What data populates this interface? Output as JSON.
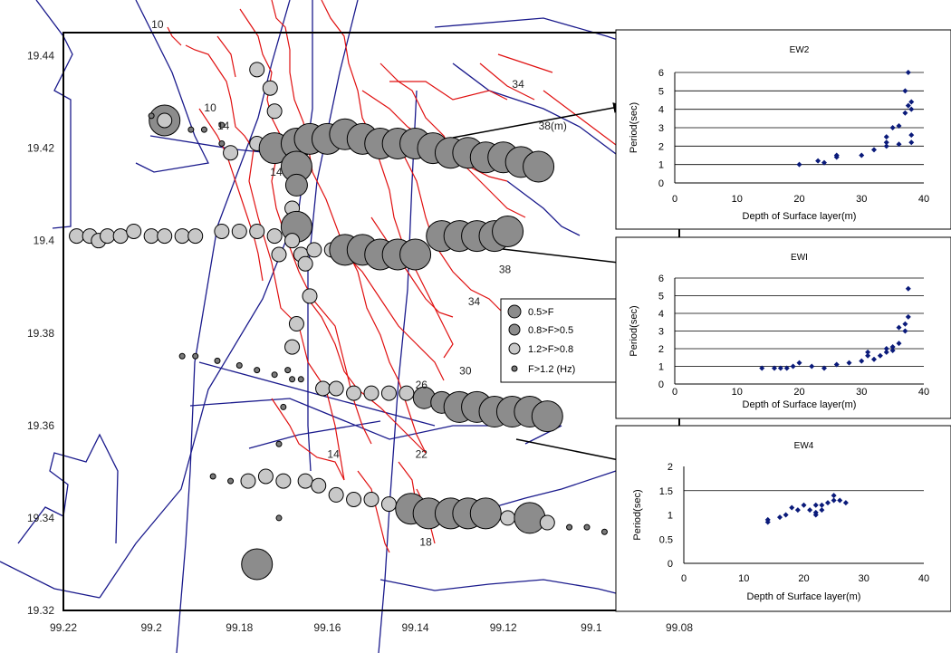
{
  "chart_data": [
    {
      "type": "scatter",
      "x_ticks": [
        "99.22",
        "99.2",
        "99.18",
        "99.16",
        "99.14",
        "99.12",
        "99.1",
        "99.08"
      ],
      "y_ticks": [
        "19.44",
        "19.42",
        "19.4",
        "19.38",
        "19.36",
        "19.34",
        "19.32"
      ],
      "xlim": [
        99.08,
        99.22
      ],
      "ylim": [
        19.32,
        19.45
      ],
      "contour_labels": [
        {
          "text": "10",
          "x": 99.2,
          "y": 19.446
        },
        {
          "text": "10",
          "x": 99.188,
          "y": 19.428
        },
        {
          "text": "14",
          "x": 99.185,
          "y": 19.424
        },
        {
          "text": "14",
          "x": 99.173,
          "y": 19.414
        },
        {
          "text": "34",
          "x": 99.118,
          "y": 19.433
        },
        {
          "text": "38(m)",
          "x": 99.112,
          "y": 19.424
        },
        {
          "text": "38",
          "x": 99.121,
          "y": 19.393
        },
        {
          "text": "34",
          "x": 99.128,
          "y": 19.386
        },
        {
          "text": "30",
          "x": 99.13,
          "y": 19.371
        },
        {
          "text": "26",
          "x": 99.14,
          "y": 19.368
        },
        {
          "text": "22",
          "x": 99.14,
          "y": 19.353
        },
        {
          "text": "14",
          "x": 99.16,
          "y": 19.353
        },
        {
          "text": "18",
          "x": 99.139,
          "y": 19.334
        }
      ],
      "legend": {
        "placement": "right",
        "entries": [
          {
            "label": "0.5>F",
            "color": "#8c8c8c",
            "size": "large"
          },
          {
            "label": "0.8>F>0.5",
            "color": "#8c8c8c",
            "size": "medium"
          },
          {
            "label": "1.2>F>0.8",
            "color": "#c8c8c8",
            "size": "medium"
          },
          {
            "label": "F>1.2  (Hz)",
            "color": "#7a7a7a",
            "size": "small"
          }
        ]
      },
      "points": [
        {
          "x": 99.197,
          "y": 19.426,
          "c": 1
        },
        {
          "x": 99.197,
          "y": 19.426,
          "c": 3
        },
        {
          "x": 99.2,
          "y": 19.427,
          "c": 4
        },
        {
          "x": 99.191,
          "y": 19.424,
          "c": 4
        },
        {
          "x": 99.188,
          "y": 19.424,
          "c": 4
        },
        {
          "x": 99.184,
          "y": 19.421,
          "c": 4
        },
        {
          "x": 99.184,
          "y": 19.425,
          "c": 4
        },
        {
          "x": 99.176,
          "y": 19.437,
          "c": 3
        },
        {
          "x": 99.173,
          "y": 19.433,
          "c": 3
        },
        {
          "x": 99.172,
          "y": 19.428,
          "c": 3
        },
        {
          "x": 99.182,
          "y": 19.419,
          "c": 3
        },
        {
          "x": 99.176,
          "y": 19.421,
          "c": 3
        },
        {
          "x": 99.172,
          "y": 19.42,
          "c": 1
        },
        {
          "x": 99.167,
          "y": 19.421,
          "c": 1
        },
        {
          "x": 99.164,
          "y": 19.422,
          "c": 1
        },
        {
          "x": 99.16,
          "y": 19.422,
          "c": 1
        },
        {
          "x": 99.156,
          "y": 19.423,
          "c": 1
        },
        {
          "x": 99.152,
          "y": 19.422,
          "c": 1
        },
        {
          "x": 99.148,
          "y": 19.421,
          "c": 1
        },
        {
          "x": 99.144,
          "y": 19.421,
          "c": 1
        },
        {
          "x": 99.14,
          "y": 19.421,
          "c": 1
        },
        {
          "x": 99.136,
          "y": 19.42,
          "c": 1
        },
        {
          "x": 99.132,
          "y": 19.419,
          "c": 1
        },
        {
          "x": 99.128,
          "y": 19.419,
          "c": 1
        },
        {
          "x": 99.124,
          "y": 19.418,
          "c": 1
        },
        {
          "x": 99.12,
          "y": 19.418,
          "c": 1
        },
        {
          "x": 99.116,
          "y": 19.417,
          "c": 1
        },
        {
          "x": 99.112,
          "y": 19.416,
          "c": 1
        },
        {
          "x": 99.167,
          "y": 19.416,
          "c": 1
        },
        {
          "x": 99.167,
          "y": 19.412,
          "c": 2
        },
        {
          "x": 99.168,
          "y": 19.407,
          "c": 3
        },
        {
          "x": 99.167,
          "y": 19.403,
          "c": 1
        },
        {
          "x": 99.166,
          "y": 19.397,
          "c": 3
        },
        {
          "x": 99.165,
          "y": 19.395,
          "c": 3
        },
        {
          "x": 99.164,
          "y": 19.388,
          "c": 3
        },
        {
          "x": 99.167,
          "y": 19.382,
          "c": 3
        },
        {
          "x": 99.168,
          "y": 19.377,
          "c": 3
        },
        {
          "x": 99.169,
          "y": 19.372,
          "c": 4
        },
        {
          "x": 99.166,
          "y": 19.37,
          "c": 4
        },
        {
          "x": 99.217,
          "y": 19.401,
          "c": 3
        },
        {
          "x": 99.214,
          "y": 19.401,
          "c": 3
        },
        {
          "x": 99.212,
          "y": 19.4,
          "c": 3
        },
        {
          "x": 99.21,
          "y": 19.401,
          "c": 3
        },
        {
          "x": 99.207,
          "y": 19.401,
          "c": 3
        },
        {
          "x": 99.204,
          "y": 19.402,
          "c": 3
        },
        {
          "x": 99.2,
          "y": 19.401,
          "c": 3
        },
        {
          "x": 99.197,
          "y": 19.401,
          "c": 3
        },
        {
          "x": 99.193,
          "y": 19.401,
          "c": 3
        },
        {
          "x": 99.19,
          "y": 19.401,
          "c": 3
        },
        {
          "x": 99.184,
          "y": 19.402,
          "c": 3
        },
        {
          "x": 99.18,
          "y": 19.402,
          "c": 3
        },
        {
          "x": 99.176,
          "y": 19.402,
          "c": 3
        },
        {
          "x": 99.172,
          "y": 19.401,
          "c": 3
        },
        {
          "x": 99.168,
          "y": 19.4,
          "c": 3
        },
        {
          "x": 99.171,
          "y": 19.397,
          "c": 3
        },
        {
          "x": 99.163,
          "y": 19.398,
          "c": 3
        },
        {
          "x": 99.159,
          "y": 19.398,
          "c": 3
        },
        {
          "x": 99.156,
          "y": 19.398,
          "c": 1
        },
        {
          "x": 99.152,
          "y": 19.398,
          "c": 1
        },
        {
          "x": 99.148,
          "y": 19.397,
          "c": 1
        },
        {
          "x": 99.144,
          "y": 19.397,
          "c": 1
        },
        {
          "x": 99.14,
          "y": 19.397,
          "c": 1
        },
        {
          "x": 99.134,
          "y": 19.401,
          "c": 1
        },
        {
          "x": 99.13,
          "y": 19.401,
          "c": 1
        },
        {
          "x": 99.126,
          "y": 19.401,
          "c": 1
        },
        {
          "x": 99.122,
          "y": 19.401,
          "c": 1
        },
        {
          "x": 99.119,
          "y": 19.402,
          "c": 1
        },
        {
          "x": 99.193,
          "y": 19.375,
          "c": 4
        },
        {
          "x": 99.19,
          "y": 19.375,
          "c": 4
        },
        {
          "x": 99.185,
          "y": 19.374,
          "c": 4
        },
        {
          "x": 99.18,
          "y": 19.373,
          "c": 4
        },
        {
          "x": 99.176,
          "y": 19.372,
          "c": 4
        },
        {
          "x": 99.172,
          "y": 19.371,
          "c": 4
        },
        {
          "x": 99.168,
          "y": 19.37,
          "c": 4
        },
        {
          "x": 99.161,
          "y": 19.368,
          "c": 3
        },
        {
          "x": 99.158,
          "y": 19.368,
          "c": 3
        },
        {
          "x": 99.154,
          "y": 19.367,
          "c": 3
        },
        {
          "x": 99.15,
          "y": 19.367,
          "c": 3
        },
        {
          "x": 99.146,
          "y": 19.367,
          "c": 3
        },
        {
          "x": 99.142,
          "y": 19.367,
          "c": 3
        },
        {
          "x": 99.138,
          "y": 19.366,
          "c": 2
        },
        {
          "x": 99.134,
          "y": 19.365,
          "c": 2
        },
        {
          "x": 99.13,
          "y": 19.364,
          "c": 1
        },
        {
          "x": 99.126,
          "y": 19.364,
          "c": 1
        },
        {
          "x": 99.122,
          "y": 19.363,
          "c": 1
        },
        {
          "x": 99.118,
          "y": 19.363,
          "c": 1
        },
        {
          "x": 99.114,
          "y": 19.363,
          "c": 1
        },
        {
          "x": 99.11,
          "y": 19.362,
          "c": 1
        },
        {
          "x": 99.17,
          "y": 19.364,
          "c": 4
        },
        {
          "x": 99.171,
          "y": 19.356,
          "c": 4
        },
        {
          "x": 99.186,
          "y": 19.349,
          "c": 4
        },
        {
          "x": 99.182,
          "y": 19.348,
          "c": 4
        },
        {
          "x": 99.178,
          "y": 19.348,
          "c": 3
        },
        {
          "x": 99.174,
          "y": 19.349,
          "c": 3
        },
        {
          "x": 99.17,
          "y": 19.348,
          "c": 3
        },
        {
          "x": 99.165,
          "y": 19.348,
          "c": 3
        },
        {
          "x": 99.162,
          "y": 19.347,
          "c": 3
        },
        {
          "x": 99.158,
          "y": 19.345,
          "c": 3
        },
        {
          "x": 99.154,
          "y": 19.344,
          "c": 3
        },
        {
          "x": 99.15,
          "y": 19.344,
          "c": 3
        },
        {
          "x": 99.146,
          "y": 19.343,
          "c": 3
        },
        {
          "x": 99.141,
          "y": 19.342,
          "c": 1
        },
        {
          "x": 99.137,
          "y": 19.341,
          "c": 1
        },
        {
          "x": 99.132,
          "y": 19.341,
          "c": 1
        },
        {
          "x": 99.128,
          "y": 19.341,
          "c": 1
        },
        {
          "x": 99.124,
          "y": 19.341,
          "c": 1
        },
        {
          "x": 99.119,
          "y": 19.34,
          "c": 3
        },
        {
          "x": 99.114,
          "y": 19.34,
          "c": 1
        },
        {
          "x": 99.11,
          "y": 19.339,
          "c": 3
        },
        {
          "x": 99.105,
          "y": 19.338,
          "c": 4
        },
        {
          "x": 99.101,
          "y": 19.338,
          "c": 4
        },
        {
          "x": 99.097,
          "y": 19.337,
          "c": 4
        },
        {
          "x": 99.171,
          "y": 19.34,
          "c": 4
        },
        {
          "x": 99.176,
          "y": 19.33,
          "c": 1
        }
      ]
    },
    {
      "type": "scatter",
      "title": "EW2",
      "xlabel": "Depth of Surface layer(m)",
      "ylabel": "Period(sec)",
      "x_ticks": [
        "0",
        "10",
        "20",
        "30",
        "40"
      ],
      "y_ticks": [
        "0",
        "1",
        "2",
        "3",
        "4",
        "5",
        "6"
      ],
      "xlim": [
        0,
        40
      ],
      "ylim": [
        0,
        6
      ],
      "gridlines_y": [
        1,
        2,
        3,
        4,
        5,
        6
      ],
      "points": [
        {
          "x": 20,
          "y": 1.0
        },
        {
          "x": 23,
          "y": 1.2
        },
        {
          "x": 24,
          "y": 1.1
        },
        {
          "x": 26,
          "y": 1.4
        },
        {
          "x": 26,
          "y": 1.5
        },
        {
          "x": 30,
          "y": 1.5
        },
        {
          "x": 32,
          "y": 1.8
        },
        {
          "x": 34,
          "y": 2.0
        },
        {
          "x": 34,
          "y": 2.2
        },
        {
          "x": 34,
          "y": 2.5
        },
        {
          "x": 35,
          "y": 3.0
        },
        {
          "x": 36,
          "y": 3.1
        },
        {
          "x": 36,
          "y": 2.1
        },
        {
          "x": 37,
          "y": 3.8
        },
        {
          "x": 37,
          "y": 5.0
        },
        {
          "x": 37.5,
          "y": 4.2
        },
        {
          "x": 38,
          "y": 4.4
        },
        {
          "x": 38,
          "y": 4.0
        },
        {
          "x": 38,
          "y": 2.2
        },
        {
          "x": 38,
          "y": 2.6
        },
        {
          "x": 37.5,
          "y": 6.0
        }
      ]
    },
    {
      "type": "scatter",
      "title": "EWI",
      "xlabel": "Depth of Surface layer(m)",
      "ylabel": "Period(sec)",
      "x_ticks": [
        "0",
        "10",
        "20",
        "30",
        "40"
      ],
      "y_ticks": [
        "0",
        "1",
        "2",
        "3",
        "4",
        "5",
        "6"
      ],
      "xlim": [
        0,
        40
      ],
      "ylim": [
        0,
        6
      ],
      "gridlines_y": [
        1,
        2,
        3,
        4,
        5,
        6
      ],
      "points": [
        {
          "x": 14,
          "y": 0.9
        },
        {
          "x": 16,
          "y": 0.9
        },
        {
          "x": 17,
          "y": 0.9
        },
        {
          "x": 18,
          "y": 0.9
        },
        {
          "x": 19,
          "y": 1.0
        },
        {
          "x": 20,
          "y": 1.2
        },
        {
          "x": 22,
          "y": 1.0
        },
        {
          "x": 24,
          "y": 0.9
        },
        {
          "x": 26,
          "y": 1.1
        },
        {
          "x": 28,
          "y": 1.2
        },
        {
          "x": 30,
          "y": 1.3
        },
        {
          "x": 31,
          "y": 1.6
        },
        {
          "x": 31,
          "y": 1.8
        },
        {
          "x": 32,
          "y": 1.4
        },
        {
          "x": 33,
          "y": 1.6
        },
        {
          "x": 34,
          "y": 1.8
        },
        {
          "x": 34,
          "y": 2.0
        },
        {
          "x": 35,
          "y": 1.9
        },
        {
          "x": 35,
          "y": 2.1
        },
        {
          "x": 36,
          "y": 2.3
        },
        {
          "x": 36,
          "y": 3.2
        },
        {
          "x": 37,
          "y": 3.4
        },
        {
          "x": 37,
          "y": 3.0
        },
        {
          "x": 37.5,
          "y": 3.8
        },
        {
          "x": 37.5,
          "y": 5.4
        }
      ]
    },
    {
      "type": "scatter",
      "title": "EW4",
      "xlabel": "Depth of Surface layer(m)",
      "ylabel": "Period(sec)",
      "x_ticks": [
        "0",
        "10",
        "20",
        "30",
        "40"
      ],
      "y_ticks": [
        "0",
        "0.5",
        "1",
        "1.5",
        "2"
      ],
      "xlim": [
        0,
        40
      ],
      "ylim": [
        0,
        2
      ],
      "gridlines_y": [
        1.5
      ],
      "points": [
        {
          "x": 14,
          "y": 0.85
        },
        {
          "x": 14,
          "y": 0.9
        },
        {
          "x": 16,
          "y": 0.95
        },
        {
          "x": 17,
          "y": 1.0
        },
        {
          "x": 18,
          "y": 1.15
        },
        {
          "x": 19,
          "y": 1.1
        },
        {
          "x": 20,
          "y": 1.2
        },
        {
          "x": 21,
          "y": 1.1
        },
        {
          "x": 22,
          "y": 1.2
        },
        {
          "x": 22,
          "y": 1.0
        },
        {
          "x": 22,
          "y": 1.05
        },
        {
          "x": 23,
          "y": 1.1
        },
        {
          "x": 23,
          "y": 1.2
        },
        {
          "x": 24,
          "y": 1.25
        },
        {
          "x": 25,
          "y": 1.3
        },
        {
          "x": 25,
          "y": 1.4
        },
        {
          "x": 26,
          "y": 1.3
        },
        {
          "x": 27,
          "y": 1.25
        }
      ]
    }
  ]
}
